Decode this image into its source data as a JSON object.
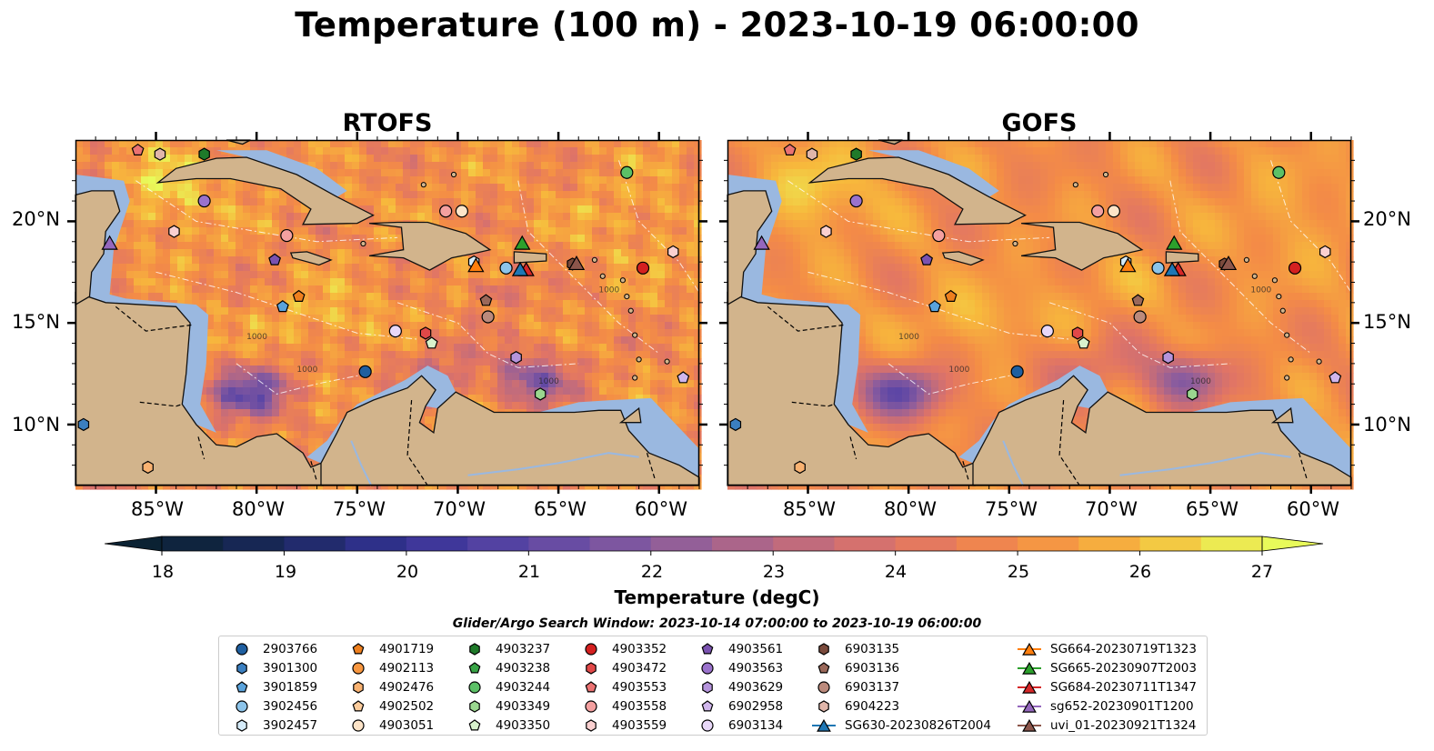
{
  "title": "Temperature (100 m) - 2023-10-19 06:00:00",
  "panels": [
    {
      "id": "rtofs",
      "title": "RTOFS"
    },
    {
      "id": "gofs",
      "title": "GOFS"
    }
  ],
  "map": {
    "lon_range": [
      -89,
      -58
    ],
    "lat_range": [
      7,
      24
    ],
    "lat_ticks": [
      {
        "value": 20,
        "label": "20°N"
      },
      {
        "value": 15,
        "label": "15°N"
      },
      {
        "value": 10,
        "label": "10°N"
      }
    ],
    "lon_ticks": [
      {
        "value": -85,
        "label": "85°W"
      },
      {
        "value": -80,
        "label": "80°W"
      },
      {
        "value": -75,
        "label": "75°W"
      },
      {
        "value": -70,
        "label": "70°W"
      },
      {
        "value": -65,
        "label": "65°W"
      },
      {
        "value": -60,
        "label": "60°W"
      }
    ],
    "contour_labels": [
      "1000",
      "1000",
      "1000",
      "1000"
    ],
    "land_color": "#d2b48c",
    "shelf_color": "#9ab8e0",
    "deep_color": "#0b2233"
  },
  "colorbar": {
    "label": "Temperature (degC)",
    "range": [
      18,
      27
    ],
    "ticks": [
      "18",
      "19",
      "20",
      "21",
      "22",
      "23",
      "24",
      "25",
      "26",
      "27"
    ],
    "colormap": "thermal",
    "extend": "both"
  },
  "legend": {
    "title": "Glider/Argo Search Window: 2023-10-14 07:00:00 to 2023-10-19 06:00:00",
    "columns": [
      [
        {
          "label": "2903766",
          "marker": "circle",
          "color": "#1f5fa0"
        },
        {
          "label": "3901300",
          "marker": "hexagon",
          "color": "#3b7fc0"
        },
        {
          "label": "3901859",
          "marker": "pentagon",
          "color": "#5aa3dc"
        },
        {
          "label": "3902456",
          "marker": "circle",
          "color": "#8cc4ea"
        },
        {
          "label": "3902457",
          "marker": "hexagon",
          "color": "#d6ecfa"
        }
      ],
      [
        {
          "label": "4901719",
          "marker": "pentagon",
          "color": "#ee7f1e"
        },
        {
          "label": "4902113",
          "marker": "circle",
          "color": "#f7963f"
        },
        {
          "label": "4902476",
          "marker": "hexagon",
          "color": "#f9b271"
        },
        {
          "label": "4902502",
          "marker": "pentagon",
          "color": "#fccc9c"
        },
        {
          "label": "4903051",
          "marker": "circle",
          "color": "#fde4c8"
        }
      ],
      [
        {
          "label": "4903237",
          "marker": "hexagon",
          "color": "#1f7a2a"
        },
        {
          "label": "4903238",
          "marker": "pentagon",
          "color": "#38a446"
        },
        {
          "label": "4903244",
          "marker": "circle",
          "color": "#5cc066"
        },
        {
          "label": "4903349",
          "marker": "hexagon",
          "color": "#9ad78f"
        },
        {
          "label": "4903350",
          "marker": "pentagon",
          "color": "#d8f2cc"
        }
      ],
      [
        {
          "label": "4903352",
          "marker": "circle",
          "color": "#d42020"
        },
        {
          "label": "4903472",
          "marker": "hexagon",
          "color": "#e14848"
        },
        {
          "label": "4903553",
          "marker": "pentagon",
          "color": "#eb7272"
        },
        {
          "label": "4903558",
          "marker": "circle",
          "color": "#f4a0a0"
        },
        {
          "label": "4903559",
          "marker": "hexagon",
          "color": "#fad0d0"
        }
      ],
      [
        {
          "label": "4903561",
          "marker": "pentagon",
          "color": "#7a52b0"
        },
        {
          "label": "4903563",
          "marker": "circle",
          "color": "#9a72cc"
        },
        {
          "label": "4903629",
          "marker": "hexagon",
          "color": "#b594dc"
        },
        {
          "label": "6902958",
          "marker": "pentagon",
          "color": "#d0b6ec"
        },
        {
          "label": "6903134",
          "marker": "circle",
          "color": "#e8d8f8"
        }
      ],
      [
        {
          "label": "6903135",
          "marker": "hexagon",
          "color": "#7a4a3c"
        },
        {
          "label": "6903136",
          "marker": "pentagon",
          "color": "#9a685a"
        },
        {
          "label": "6903137",
          "marker": "circle",
          "color": "#bb8a7c"
        },
        {
          "label": "6904223",
          "marker": "hexagon",
          "color": "#e0b6aa"
        },
        {
          "label": "SG630-20230826T2004",
          "marker": "triangle-line",
          "color": "#1f77b4"
        }
      ],
      [
        {
          "label": "SG664-20230719T1323",
          "marker": "triangle-line",
          "color": "#ff7f0e"
        },
        {
          "label": "SG665-20230907T2003",
          "marker": "triangle-line",
          "color": "#2ca02c"
        },
        {
          "label": "SG684-20230711T1347",
          "marker": "triangle-line",
          "color": "#d62728"
        },
        {
          "label": "sg652-20230901T1200",
          "marker": "triangle-line",
          "color": "#9467bd"
        },
        {
          "label": "uvi_01-20230921T1324",
          "marker": "triangle-line",
          "color": "#8c564b"
        }
      ]
    ]
  },
  "observations": [
    {
      "id": "2903766",
      "lon": -74.6,
      "lat": 12.6
    },
    {
      "id": "3901300",
      "lon": -88.6,
      "lat": 10.0
    },
    {
      "id": "3901859",
      "lon": -78.7,
      "lat": 15.8
    },
    {
      "id": "3902456",
      "lon": -67.6,
      "lat": 17.7
    },
    {
      "id": "3902457",
      "lon": -69.2,
      "lat": 18.0
    },
    {
      "id": "4901719",
      "lon": -77.9,
      "lat": 16.3
    },
    {
      "id": "4902476",
      "lon": -85.4,
      "lat": 7.9
    },
    {
      "id": "4903051",
      "lon": -69.8,
      "lat": 20.5
    },
    {
      "id": "4903237",
      "lon": -82.6,
      "lat": 23.3
    },
    {
      "id": "4903244",
      "lon": -61.6,
      "lat": 22.4
    },
    {
      "id": "4903349",
      "lon": -65.9,
      "lat": 11.5
    },
    {
      "id": "4903350",
      "lon": -71.3,
      "lat": 14.0
    },
    {
      "id": "4903352",
      "lon": -60.8,
      "lat": 17.7
    },
    {
      "id": "4903472",
      "lon": -71.6,
      "lat": 14.5
    },
    {
      "id": "4903553",
      "lon": -85.9,
      "lat": 23.5
    },
    {
      "id": "4903558",
      "lon": -78.5,
      "lat": 19.3
    },
    {
      "id": "4903558b",
      "lon": -70.6,
      "lat": 20.5
    },
    {
      "id": "4903559",
      "lon": -59.3,
      "lat": 18.5
    },
    {
      "id": "4903559b",
      "lon": -84.1,
      "lat": 19.5
    },
    {
      "id": "4903561",
      "lon": -79.1,
      "lat": 18.1
    },
    {
      "id": "4903563",
      "lon": -82.6,
      "lat": 21.0
    },
    {
      "id": "4903629",
      "lon": -67.1,
      "lat": 13.3
    },
    {
      "id": "6902958",
      "lon": -58.8,
      "lat": 12.3
    },
    {
      "id": "6903134",
      "lon": -73.1,
      "lat": 14.6
    },
    {
      "id": "6903135",
      "lon": -64.3,
      "lat": 17.9
    },
    {
      "id": "6903136",
      "lon": -68.6,
      "lat": 16.1
    },
    {
      "id": "6903137",
      "lon": -68.5,
      "lat": 15.3
    },
    {
      "id": "6904223",
      "lon": -84.8,
      "lat": 23.3
    },
    {
      "id": "SG664",
      "lon": -69.1,
      "lat": 17.8
    },
    {
      "id": "SG665",
      "lon": -66.8,
      "lat": 18.9
    },
    {
      "id": "SG684",
      "lon": -66.6,
      "lat": 17.6
    },
    {
      "id": "SG630",
      "lon": -66.9,
      "lat": 17.6
    },
    {
      "id": "sg652",
      "lon": -87.3,
      "lat": 18.9
    },
    {
      "id": "uvi_01",
      "lon": -64.1,
      "lat": 17.9
    }
  ]
}
